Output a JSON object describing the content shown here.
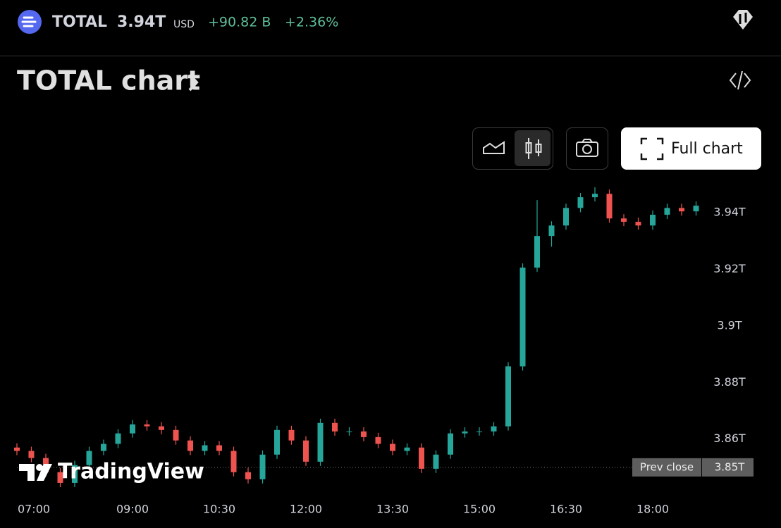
{
  "header": {
    "symbol": "TOTAL",
    "price": "3.94T",
    "currency": "USD",
    "change": "+90.82 B",
    "change_percent": "+2.36%"
  },
  "chart_title": "TOTAL chart",
  "full_chart_button": "Full chart",
  "watermark": "TradingView",
  "chart_data": {
    "type": "candlestick",
    "x": [
      "07:00",
      "07:15",
      "07:30",
      "07:45",
      "08:00",
      "08:15",
      "08:30",
      "08:45",
      "09:00",
      "09:15",
      "09:30",
      "09:45",
      "10:00",
      "10:15",
      "10:30",
      "10:45",
      "11:00",
      "11:15",
      "11:30",
      "11:45",
      "12:00",
      "12:15",
      "12:30",
      "12:45",
      "13:00",
      "13:15",
      "13:30",
      "13:45",
      "14:00",
      "14:15",
      "14:30",
      "14:45",
      "15:00",
      "15:15",
      "15:30",
      "15:45",
      "16:00",
      "16:15",
      "16:30",
      "16:45",
      "17:00",
      "17:15",
      "17:30",
      "17:45",
      "18:00",
      "18:15",
      "18:30",
      "18:45"
    ],
    "open": [
      3.857,
      3.8558,
      3.8533,
      3.8483,
      3.8445,
      3.8508,
      3.8558,
      3.8583,
      3.862,
      3.8652,
      3.8645,
      3.8632,
      3.8595,
      3.8558,
      3.8578,
      3.8558,
      3.8483,
      3.8458,
      3.8545,
      3.8632,
      3.8595,
      3.852,
      3.8657,
      3.8627,
      3.8627,
      3.8607,
      3.8583,
      3.8558,
      3.857,
      3.8495,
      3.8545,
      3.862,
      3.8627,
      3.8627,
      3.8645,
      3.8857,
      3.9206,
      3.9318,
      3.9355,
      3.9417,
      3.9455,
      3.9467,
      3.938,
      3.9368,
      3.9355,
      3.9393,
      3.9417,
      3.9405
    ],
    "high": [
      3.8585,
      3.8573,
      3.8548,
      3.8498,
      3.8523,
      3.8573,
      3.8598,
      3.8635,
      3.8667,
      3.8667,
      3.866,
      3.8647,
      3.861,
      3.8593,
      3.8593,
      3.8573,
      3.8498,
      3.856,
      3.8647,
      3.8647,
      3.861,
      3.8672,
      3.8672,
      3.8642,
      3.8642,
      3.8622,
      3.8598,
      3.8585,
      3.8585,
      3.856,
      3.8635,
      3.8642,
      3.8642,
      3.866,
      3.8872,
      3.9221,
      3.9445,
      3.937,
      3.9432,
      3.947,
      3.949,
      3.9482,
      3.9395,
      3.9383,
      3.9408,
      3.9432,
      3.9432,
      3.944
    ],
    "low": [
      3.8543,
      3.8518,
      3.8468,
      3.843,
      3.843,
      3.8493,
      3.8543,
      3.8568,
      3.8605,
      3.863,
      3.8617,
      3.858,
      3.8543,
      3.8543,
      3.8543,
      3.8468,
      3.8443,
      3.8443,
      3.853,
      3.858,
      3.8505,
      3.8505,
      3.8612,
      3.8612,
      3.8592,
      3.8568,
      3.8543,
      3.8543,
      3.848,
      3.848,
      3.853,
      3.8605,
      3.8612,
      3.8612,
      3.863,
      3.8842,
      3.9191,
      3.928,
      3.934,
      3.9402,
      3.944,
      3.9365,
      3.9353,
      3.934,
      3.934,
      3.9378,
      3.939,
      3.939
    ],
    "close": [
      3.8558,
      3.8533,
      3.8483,
      3.8445,
      3.8508,
      3.8558,
      3.8583,
      3.862,
      3.8652,
      3.8645,
      3.8632,
      3.8595,
      3.8558,
      3.8578,
      3.8558,
      3.8483,
      3.8458,
      3.8545,
      3.8632,
      3.8595,
      3.852,
      3.8657,
      3.8627,
      3.8627,
      3.8607,
      3.8583,
      3.8558,
      3.857,
      3.8495,
      3.8545,
      3.862,
      3.8627,
      3.8627,
      3.8645,
      3.8857,
      3.9206,
      3.9318,
      3.9355,
      3.9417,
      3.9455,
      3.9467,
      3.938,
      3.9368,
      3.9355,
      3.9393,
      3.9417,
      3.9405,
      3.9425
    ],
    "up_color": "#26a69a",
    "down_color": "#ef5350",
    "ylim": [
      3.841,
      3.953
    ],
    "yticks": [
      {
        "value": 3.86,
        "label": "3.86T"
      },
      {
        "value": 3.88,
        "label": "3.88T"
      },
      {
        "value": 3.9,
        "label": "3.9T"
      },
      {
        "value": 3.92,
        "label": "3.92T"
      },
      {
        "value": 3.94,
        "label": "3.94T"
      }
    ],
    "xticks": [
      "07:00",
      "09:00",
      "10:30",
      "12:00",
      "13:30",
      "15:00",
      "16:30",
      "18:00"
    ],
    "prev_close": {
      "value": 3.85,
      "label": "3.85T"
    },
    "prev_close_text": "Prev close"
  }
}
